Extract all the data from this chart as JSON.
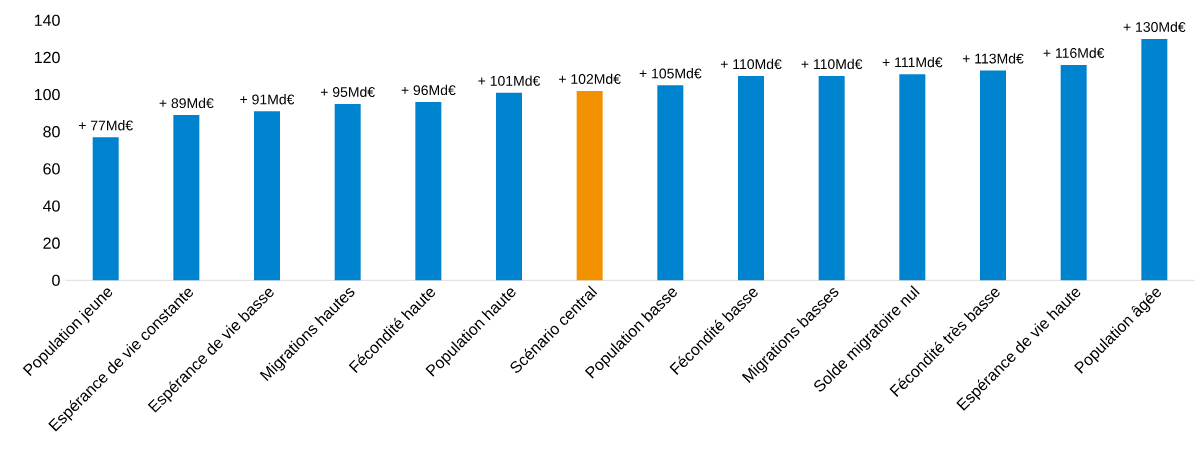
{
  "chart_data": {
    "type": "bar",
    "categories": [
      "Population jeune",
      "Espérance de vie constante",
      "Espérance de vie basse",
      "Migrations hautes",
      "Fécondité haute",
      "Population haute",
      "Scénario central",
      "Population basse",
      "Fécondité basse",
      "Migrations basses",
      "Solde migratoire nul",
      "Fécondité très basse",
      "Espérance de vie haute",
      "Population âgée"
    ],
    "values": [
      77,
      89,
      91,
      95,
      96,
      101,
      102,
      105,
      110,
      110,
      111,
      113,
      116,
      130
    ],
    "value_labels": [
      "+ 77Md€",
      "+ 89Md€",
      "+ 91Md€",
      "+ 95Md€",
      "+ 96Md€",
      "+ 101Md€",
      "+ 102Md€",
      "+ 105Md€",
      "+ 110Md€",
      "+ 110Md€",
      "+ 111Md€",
      "+ 113Md€",
      "+ 116Md€",
      "+ 130Md€"
    ],
    "colors": [
      "#0083cf",
      "#0083cf",
      "#0083cf",
      "#0083cf",
      "#0083cf",
      "#0083cf",
      "#f39200",
      "#0083cf",
      "#0083cf",
      "#0083cf",
      "#0083cf",
      "#0083cf",
      "#0083cf",
      "#0083cf"
    ],
    "ylim": [
      0,
      140
    ],
    "yticks": [
      0,
      20,
      40,
      60,
      80,
      100,
      120,
      140
    ]
  }
}
